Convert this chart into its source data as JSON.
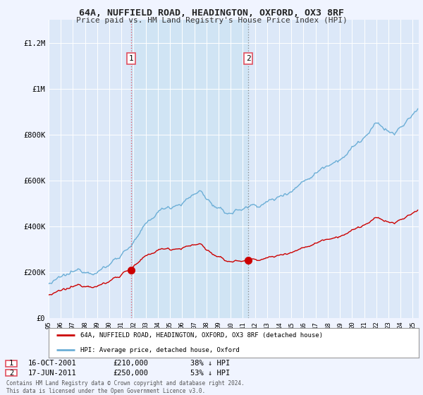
{
  "title": "64A, NUFFIELD ROAD, HEADINGTON, OXFORD, OX3 8RF",
  "subtitle": "Price paid vs. HM Land Registry's House Price Index (HPI)",
  "sale1_date": "16-OCT-2001",
  "sale1_price": 210000,
  "sale1_label": "38% ↓ HPI",
  "sale2_date": "17-JUN-2011",
  "sale2_price": 250000,
  "sale2_label": "53% ↓ HPI",
  "legend_property": "64A, NUFFIELD ROAD, HEADINGTON, OXFORD, OX3 8RF (detached house)",
  "legend_hpi": "HPI: Average price, detached house, Oxford",
  "footer": "Contains HM Land Registry data © Crown copyright and database right 2024.\nThis data is licensed under the Open Government Licence v3.0.",
  "bg_color": "#f0f4ff",
  "plot_bg_color": "#dce8f8",
  "hpi_color": "#6baed6",
  "price_color": "#cc0000",
  "vline1_color": "#e05060",
  "vline2_color": "#888888",
  "shade_color": "#d0e4f4",
  "ylim_max": 1300000,
  "yticks": [
    0,
    200000,
    400000,
    600000,
    800000,
    1000000,
    1200000
  ],
  "ytick_labels": [
    "£0",
    "£200K",
    "£400K",
    "£600K",
    "£800K",
    "£1M",
    "£1.2M"
  ],
  "sale1_year": 2001.79,
  "sale2_year": 2011.46
}
